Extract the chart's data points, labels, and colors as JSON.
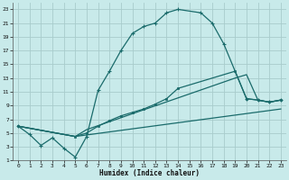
{
  "xlabel": "Humidex (Indice chaleur)",
  "bg_color": "#c8eaea",
  "line_color": "#1a6b6b",
  "grid_color": "#a8cccc",
  "xlim": [
    -0.5,
    23.5
  ],
  "ylim": [
    1,
    24
  ],
  "xticks": [
    0,
    1,
    2,
    3,
    4,
    5,
    6,
    7,
    8,
    9,
    10,
    11,
    12,
    13,
    14,
    15,
    16,
    17,
    18,
    19,
    20,
    21,
    22,
    23
  ],
  "yticks": [
    1,
    3,
    5,
    7,
    9,
    11,
    13,
    15,
    17,
    19,
    21,
    23
  ],
  "curve1_x": [
    0,
    1,
    2,
    3,
    4,
    5,
    6,
    7,
    8,
    9,
    10,
    11,
    12,
    13,
    14,
    16,
    17,
    18,
    20,
    21,
    22,
    23
  ],
  "curve1_y": [
    6.0,
    4.8,
    3.2,
    4.3,
    2.8,
    1.5,
    4.5,
    11.2,
    14.0,
    17.0,
    19.5,
    20.5,
    21.0,
    22.5,
    23.0,
    22.5,
    21.0,
    18.0,
    10.0,
    9.8,
    9.5,
    9.8
  ],
  "curve2_x": [
    0,
    5,
    6,
    7,
    8,
    9,
    10,
    11,
    12,
    13,
    14,
    19,
    20,
    21,
    22,
    23
  ],
  "curve2_y": [
    6.0,
    4.5,
    5.0,
    6.0,
    6.8,
    7.5,
    8.0,
    8.5,
    9.2,
    10.0,
    11.5,
    14.0,
    10.0,
    9.8,
    9.5,
    9.8
  ],
  "curve3_x": [
    0,
    5,
    6,
    19,
    20,
    21,
    22,
    23
  ],
  "curve3_y": [
    6.0,
    4.5,
    5.5,
    13.0,
    13.5,
    9.8,
    9.5,
    9.8
  ],
  "curve4_x": [
    0,
    5,
    23
  ],
  "curve4_y": [
    6.0,
    4.5,
    8.5
  ]
}
